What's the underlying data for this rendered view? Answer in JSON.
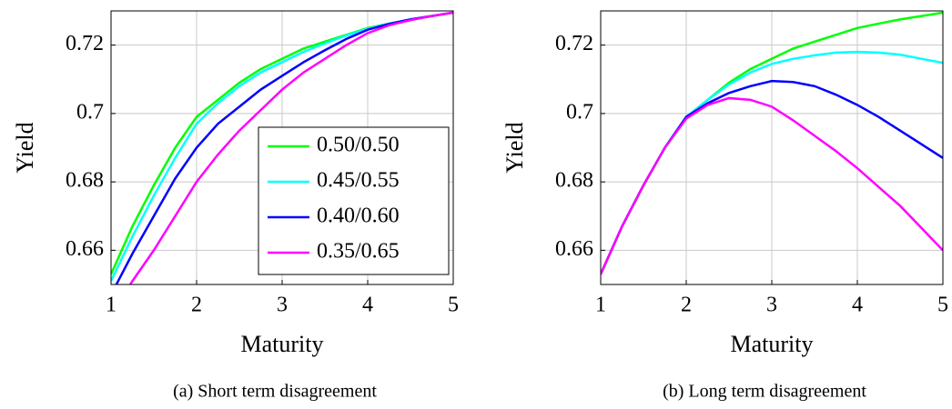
{
  "chart_data": [
    {
      "type": "line",
      "caption": "(a) Short term disagreement",
      "xlabel": "Maturity",
      "ylabel": "Yield",
      "x": [
        1,
        1.25,
        1.5,
        1.75,
        2,
        2.25,
        2.5,
        2.75,
        3,
        3.25,
        3.5,
        3.75,
        4,
        4.25,
        4.5,
        4.75,
        5
      ],
      "series": [
        {
          "name": "0.50/0.50",
          "color": "#00ff00",
          "values": [
            0.653,
            0.667,
            0.679,
            0.69,
            0.699,
            0.704,
            0.709,
            0.713,
            0.716,
            0.719,
            0.721,
            0.723,
            0.725,
            0.7263,
            0.7275,
            0.7285,
            0.7295
          ]
        },
        {
          "name": "0.45/0.55",
          "color": "#00ffff",
          "values": [
            0.651,
            0.664,
            0.676,
            0.687,
            0.697,
            0.703,
            0.708,
            0.712,
            0.715,
            0.718,
            0.7205,
            0.7228,
            0.7248,
            0.7263,
            0.7275,
            0.7285,
            0.7295
          ]
        },
        {
          "name": "0.40/0.60",
          "color": "#0000ff",
          "values": [
            0.647,
            0.659,
            0.67,
            0.681,
            0.69,
            0.697,
            0.702,
            0.707,
            0.711,
            0.715,
            0.7185,
            0.7218,
            0.7245,
            0.7262,
            0.7275,
            0.7285,
            0.7295
          ]
        },
        {
          "name": "0.35/0.65",
          "color": "#ff00ff",
          "values": [
            0.641,
            0.651,
            0.66,
            0.67,
            0.68,
            0.688,
            0.695,
            0.701,
            0.707,
            0.712,
            0.716,
            0.72,
            0.7235,
            0.7258,
            0.7273,
            0.7285,
            0.7295
          ]
        }
      ],
      "xlim": [
        1,
        5
      ],
      "ylim": [
        0.65,
        0.73
      ],
      "xticks": [
        1,
        2,
        3,
        4,
        5
      ],
      "yticks": [
        0.66,
        0.68,
        0.7,
        0.72
      ],
      "grid": true,
      "legend": "lower right"
    },
    {
      "type": "line",
      "caption": "(b) Long term disagreement",
      "xlabel": "Maturity",
      "ylabel": "Yield",
      "x": [
        1,
        1.25,
        1.5,
        1.75,
        2,
        2.25,
        2.5,
        2.75,
        3,
        3.25,
        3.5,
        3.75,
        4,
        4.25,
        4.5,
        4.75,
        5
      ],
      "series": [
        {
          "color": "#00ff00",
          "values": [
            0.653,
            0.667,
            0.679,
            0.69,
            0.699,
            0.704,
            0.709,
            0.713,
            0.716,
            0.719,
            0.721,
            0.723,
            0.725,
            0.7263,
            0.7275,
            0.7285,
            0.7295
          ]
        },
        {
          "color": "#00ffff",
          "values": [
            0.653,
            0.667,
            0.679,
            0.69,
            0.699,
            0.704,
            0.7085,
            0.712,
            0.7145,
            0.716,
            0.717,
            0.7178,
            0.718,
            0.7178,
            0.7172,
            0.716,
            0.7148
          ]
        },
        {
          "color": "#0000ff",
          "values": [
            0.653,
            0.667,
            0.679,
            0.69,
            0.699,
            0.703,
            0.706,
            0.708,
            0.7095,
            0.7092,
            0.708,
            0.7055,
            0.7025,
            0.699,
            0.695,
            0.691,
            0.687
          ]
        },
        {
          "color": "#ff00ff",
          "values": [
            0.653,
            0.667,
            0.679,
            0.69,
            0.6985,
            0.7025,
            0.7045,
            0.704,
            0.702,
            0.698,
            0.6935,
            0.689,
            0.684,
            0.6785,
            0.673,
            0.6665,
            0.66
          ]
        }
      ],
      "xlim": [
        1,
        5
      ],
      "ylim": [
        0.65,
        0.73
      ],
      "xticks": [
        1,
        2,
        3,
        4,
        5
      ],
      "yticks": [
        0.66,
        0.68,
        0.7,
        0.72
      ],
      "grid": true
    }
  ]
}
